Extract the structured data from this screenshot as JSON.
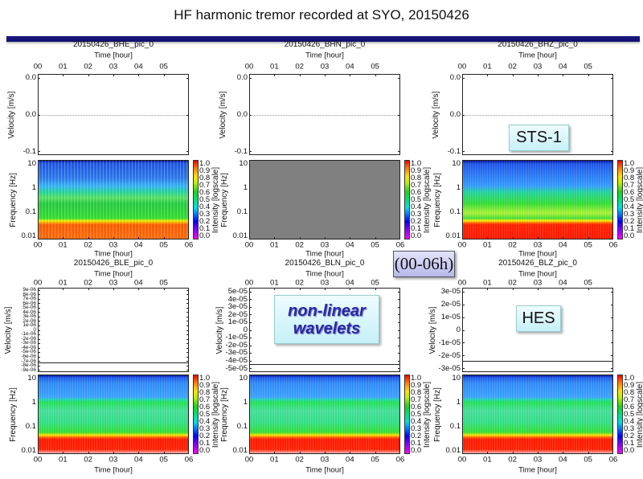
{
  "title": "HF harmonic tremor recorded at SYO, 20150426",
  "overlays": {
    "sts1": "STS-1",
    "range": "(00-06h)",
    "wavelets_line1": "non-linear",
    "wavelets_line2": "wavelets",
    "hes": "HES"
  },
  "chart_data": [
    {
      "type": "heatmap",
      "title": "20150426_BHE_pic_0",
      "xlabel": "Time [hour]",
      "x_ticks_top": [
        "00",
        "01",
        "02",
        "03",
        "04",
        "05"
      ],
      "x_ticks_bottom": [
        "00",
        "01",
        "02",
        "03",
        "04",
        "05",
        "06"
      ],
      "velocity": {
        "ylabel": "Velocity [m/s]",
        "y_ticks": [
          "0.0",
          "0.0",
          "-0.1"
        ],
        "trace_level_fraction": 0.5,
        "trace": "dotted"
      },
      "spectrogram": {
        "ylabel": "Frequency [Hz]",
        "y_ticks": [
          "10",
          "1",
          "0.1",
          "0.01"
        ],
        "ylim": [
          0.01,
          10
        ],
        "scale": "log"
      },
      "colorbar": {
        "label": "Intensity [logscale]",
        "ticks": [
          "1.0",
          "0.9",
          "0.8",
          "0.7",
          "0.6",
          "0.5",
          "0.4",
          "0.3",
          "0.2",
          "0.1",
          "0.0"
        ],
        "range": [
          0,
          1
        ]
      }
    },
    {
      "type": "heatmap",
      "title": "20150426_BHN_pic_0",
      "xlabel": "Time [hour]",
      "x_ticks_top": [
        "00",
        "01",
        "02",
        "03",
        "04",
        "05"
      ],
      "x_ticks_bottom": [
        "00",
        "01",
        "02",
        "03",
        "04",
        "05",
        "06"
      ],
      "velocity": {
        "ylabel": "Velocity [m/s]",
        "y_ticks": [
          "0.0",
          "0.0",
          "-0.1"
        ],
        "trace_level_fraction": 0.5,
        "trace": "dotted"
      },
      "spectrogram": {
        "ylabel": "Frequency [Hz]",
        "y_ticks": [
          "10",
          "1",
          "0.1",
          "0.01"
        ],
        "ylim": [
          0.01,
          10
        ],
        "scale": "log",
        "empty_color": "#808080"
      },
      "colorbar": {
        "label": "Intensity [logscale]",
        "ticks": [
          "1.0",
          "0.9",
          "0.8",
          "0.7",
          "0.6",
          "0.5",
          "0.4",
          "0.3",
          "0.2",
          "0.1",
          "0.0"
        ],
        "range": [
          0,
          1
        ]
      }
    },
    {
      "type": "heatmap",
      "title": "20150426_BHZ_pic_0",
      "xlabel": "Time [hour]",
      "x_ticks_top": [
        "00",
        "01",
        "02",
        "03",
        "04",
        "05"
      ],
      "x_ticks_bottom": [
        "00",
        "01",
        "02",
        "03",
        "04",
        "05",
        "06"
      ],
      "velocity": {
        "ylabel": "Velocity [m/s]",
        "y_ticks": [
          "0.0",
          "0.0",
          "-0.1"
        ],
        "trace_level_fraction": 0.5,
        "trace": "dotted"
      },
      "spectrogram": {
        "ylabel": "Frequency [Hz]",
        "y_ticks": [
          "10",
          "1",
          "0.1",
          "0.01"
        ],
        "ylim": [
          0.01,
          10
        ],
        "scale": "log"
      },
      "colorbar": {
        "label": "Intensity [logscale]",
        "ticks": [
          "1.0",
          "0.9",
          "0.8",
          "0.7",
          "0.6",
          "0.5",
          "0.4",
          "0.3",
          "0.2",
          "0.1",
          "0.0"
        ],
        "range": [
          0,
          1
        ]
      }
    },
    {
      "type": "heatmap",
      "title": "20150426_BLE_pic_0",
      "xlabel": "Time [hour]",
      "x_ticks_top": [
        "00",
        "01",
        "02",
        "03",
        "04",
        "05"
      ],
      "x_ticks_bottom": [
        "00",
        "01",
        "02",
        "03",
        "04",
        "05",
        "06"
      ],
      "velocity": {
        "ylabel": "Velocity [m/s]",
        "y_ticks": [
          "9e-06",
          "8e-06",
          "7e-06",
          "6e-06",
          "5e-06",
          "4e-06",
          "3e-06",
          "2e-06",
          "1e-06",
          "0",
          "-1e-06",
          "-2e-06",
          "-3e-06",
          "-4e-06",
          "-5e-06",
          "-6e-06",
          "-7e-06",
          "-8e-06",
          "-9e-06"
        ],
        "trace_level_fraction": 0.89,
        "trace": "solid"
      },
      "spectrogram": {
        "ylabel": "Frequency [Hz]",
        "y_ticks": [
          "10",
          "1",
          "0.1",
          "0.01"
        ],
        "ylim": [
          0.01,
          10
        ],
        "scale": "log"
      },
      "colorbar": {
        "label": "Intensity [logscale]",
        "ticks": [
          "1.0",
          "0.9",
          "0.8",
          "0.7",
          "0.6",
          "0.5",
          "0.4",
          "0.3",
          "0.2",
          "0.1",
          "0.0"
        ],
        "range": [
          0,
          1
        ]
      }
    },
    {
      "type": "heatmap",
      "title": "20150426_BLN_pic_0",
      "xlabel": "Time [hour]",
      "x_ticks_top": [
        "00",
        "01",
        "02",
        "03",
        "04",
        "05"
      ],
      "x_ticks_bottom": [
        "00",
        "01",
        "02",
        "03",
        "04",
        "05",
        "06"
      ],
      "velocity": {
        "ylabel": "Velocity [m/s]",
        "y_ticks": [
          "5e-05",
          "4e-05",
          "3e-05",
          "2e-05",
          "1e-05",
          "0",
          "-1e-05",
          "-2e-05",
          "-3e-05",
          "-4e-05",
          "-5e-05"
        ],
        "trace_level_fraction": 0.9,
        "trace": "solid"
      },
      "spectrogram": {
        "ylabel": "Frequency [Hz]",
        "y_ticks": [
          "10",
          "1",
          "0.1",
          "0.01"
        ],
        "ylim": [
          0.01,
          10
        ],
        "scale": "log"
      },
      "colorbar": {
        "label": "Intensity [logscale]",
        "ticks": [
          "1.0",
          "0.9",
          "0.8",
          "0.7",
          "0.6",
          "0.5",
          "0.4",
          "0.3",
          "0.2",
          "0.1",
          "0.0"
        ],
        "range": [
          0,
          1
        ]
      }
    },
    {
      "type": "heatmap",
      "title": "20150426_BLZ_pic_0",
      "xlabel": "Time [hour]",
      "x_ticks_top": [
        "00",
        "01",
        "02",
        "03",
        "04",
        "05"
      ],
      "x_ticks_bottom": [
        "00",
        "01",
        "02",
        "03",
        "04",
        "05",
        "06"
      ],
      "velocity": {
        "ylabel": "Velocity [m/s]",
        "y_ticks": [
          "3e-05",
          "2e-05",
          "1e-05",
          "0",
          "-1e-05",
          "-2e-05",
          "-3e-05"
        ],
        "trace_level_fraction": 0.87,
        "trace": "solid"
      },
      "spectrogram": {
        "ylabel": "Frequency [Hz]",
        "y_ticks": [
          "10",
          "1",
          "0.1",
          "0.01"
        ],
        "ylim": [
          0.01,
          10
        ],
        "scale": "log"
      },
      "colorbar": {
        "label": "Intensity [logscale]",
        "ticks": [
          "1.0",
          "0.9",
          "0.8",
          "0.7",
          "0.6",
          "0.5",
          "0.4",
          "0.3",
          "0.2",
          "0.1",
          "0.0"
        ],
        "range": [
          0,
          1
        ]
      }
    }
  ]
}
